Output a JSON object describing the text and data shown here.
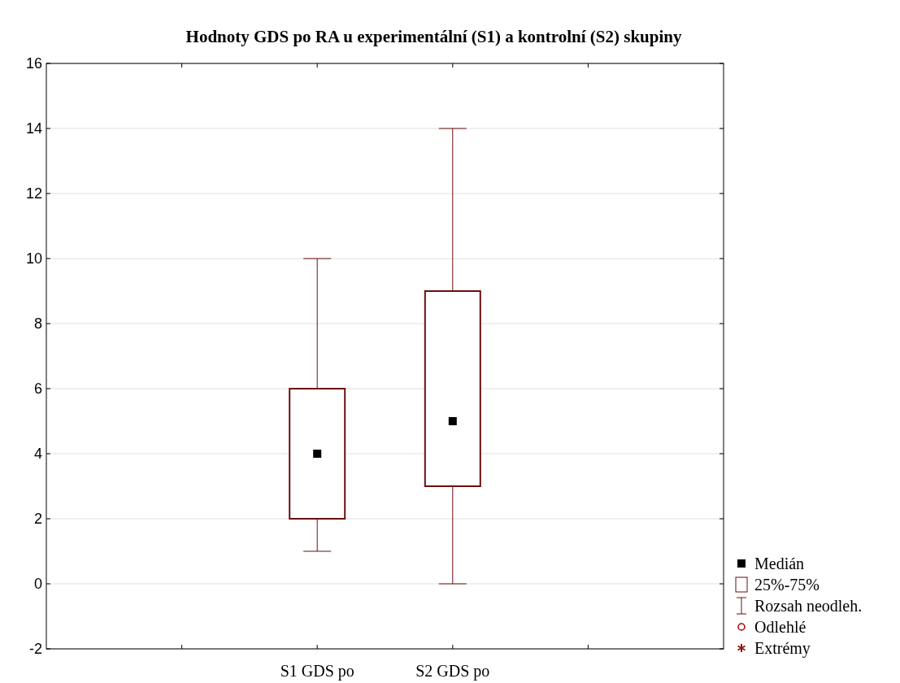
{
  "chart_data": {
    "type": "box",
    "title": "Hodnoty GDS po RA u experimentální (S1) a kontrolní (S2) skupiny",
    "categories": [
      null,
      "S1 GDS po",
      "S2 GDS po",
      null
    ],
    "boxes": [
      null,
      {
        "low": 1,
        "q1": 2,
        "median": 4,
        "q3": 6,
        "high": 10
      },
      {
        "low": 0,
        "q1": 3,
        "median": 5,
        "q3": 9,
        "high": 14
      },
      null
    ],
    "color": "#6b0f0f",
    "marker": "square",
    "ylim": [
      -2,
      16
    ],
    "yticks": [
      -2,
      0,
      2,
      4,
      6,
      8,
      10,
      12,
      14,
      16
    ],
    "grid": "y",
    "annotations": [
      "Medián",
      "25%-75%",
      "Rozsah neodleh.",
      "Odlehlé",
      "Extrémy"
    ]
  }
}
